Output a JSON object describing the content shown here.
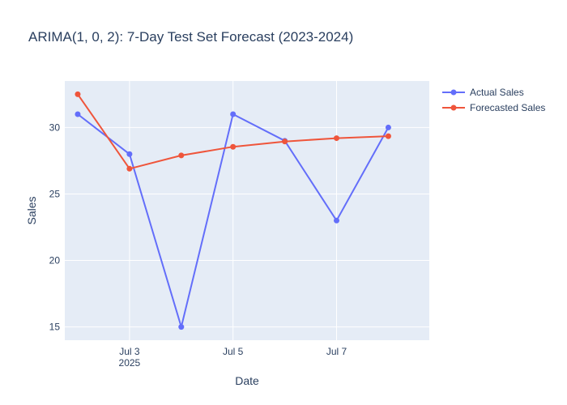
{
  "chart_data": {
    "type": "line",
    "title": "ARIMA(1, 0, 2): 7-Day Test Set Forecast (2023-2024)",
    "xlabel": "Date",
    "ylabel": "Sales",
    "x": [
      "2025-07-02",
      "2025-07-03",
      "2025-07-04",
      "2025-07-05",
      "2025-07-06",
      "2025-07-07",
      "2025-07-08"
    ],
    "series": [
      {
        "name": "Actual Sales",
        "color": "#636efa",
        "values": [
          31,
          28,
          15,
          31,
          29,
          23,
          30
        ]
      },
      {
        "name": "Forecasted Sales",
        "color": "#ef553b",
        "values": [
          32.5,
          26.9,
          27.9,
          28.55,
          28.95,
          29.2,
          29.35
        ]
      }
    ],
    "x_ticks": [
      {
        "date": "2025-07-03",
        "label": "Jul 3",
        "sublabel": "2025"
      },
      {
        "date": "2025-07-05",
        "label": "Jul 5",
        "sublabel": ""
      },
      {
        "date": "2025-07-07",
        "label": "Jul 7",
        "sublabel": ""
      }
    ],
    "xlim": [
      "2025-07-01T18:00",
      "2025-07-08T19:00"
    ],
    "y_ticks": [
      15,
      20,
      25,
      30
    ],
    "ylim": [
      14,
      33.5
    ],
    "grid": true,
    "legend_position": "top-right",
    "plot_background": "#e5ecf6"
  }
}
